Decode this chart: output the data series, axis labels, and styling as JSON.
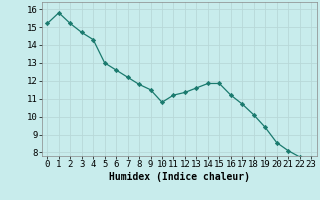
{
  "x": [
    0,
    1,
    2,
    3,
    4,
    5,
    6,
    7,
    8,
    9,
    10,
    11,
    12,
    13,
    14,
    15,
    16,
    17,
    18,
    19,
    20,
    21,
    22,
    23
  ],
  "y": [
    15.2,
    15.8,
    15.2,
    14.7,
    14.3,
    13.0,
    12.6,
    12.2,
    11.8,
    11.5,
    10.8,
    11.2,
    11.35,
    11.6,
    11.85,
    11.85,
    11.2,
    10.7,
    10.1,
    9.4,
    8.55,
    8.1,
    7.75,
    7.7
  ],
  "line_color": "#1a7a6e",
  "marker": "D",
  "marker_size": 2.2,
  "bg_color": "#c8ecec",
  "grid_color": "#b8d8d8",
  "xlabel": "Humidex (Indice chaleur)",
  "xlabel_fontsize": 7,
  "tick_fontsize": 6.5,
  "ylim": [
    7.8,
    16.4
  ],
  "xlim": [
    -0.5,
    23.5
  ],
  "yticks": [
    8,
    9,
    10,
    11,
    12,
    13,
    14,
    15,
    16
  ],
  "xticks": [
    0,
    1,
    2,
    3,
    4,
    5,
    6,
    7,
    8,
    9,
    10,
    11,
    12,
    13,
    14,
    15,
    16,
    17,
    18,
    19,
    20,
    21,
    22,
    23
  ]
}
